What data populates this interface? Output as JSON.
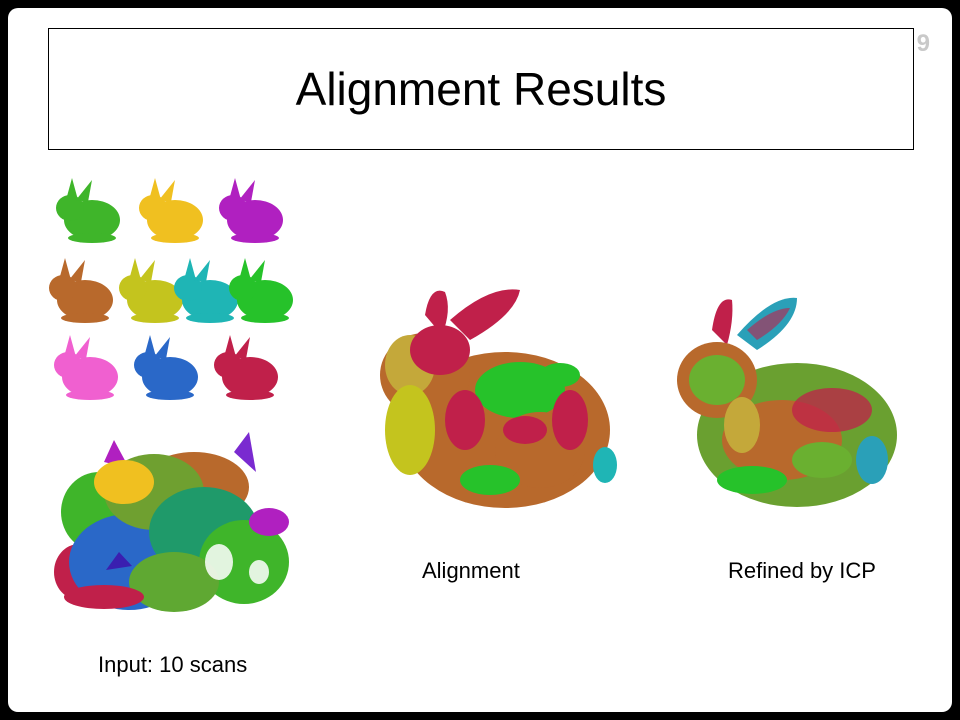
{
  "slide": {
    "page_number": "9",
    "title": "Alignment Results"
  },
  "captions": {
    "input": "Input: 10 scans",
    "alignment": "Alignment",
    "refined": "Refined by ICP"
  },
  "scans": [
    {
      "color": "#3fb52a",
      "icon": "bunny-scan-icon"
    },
    {
      "color": "#f0c020",
      "icon": "bunny-scan-icon"
    },
    {
      "color": "#b020c0",
      "icon": "bunny-scan-icon"
    },
    {
      "color": "#b8692c",
      "icon": "bunny-scan-icon"
    },
    {
      "color": "#c4c41e",
      "icon": "bunny-scan-icon"
    },
    {
      "color": "#1fb5b5",
      "icon": "bunny-scan-icon"
    },
    {
      "color": "#26c22a",
      "icon": "bunny-scan-icon"
    },
    {
      "color": "#f060d0",
      "icon": "bunny-scan-icon"
    },
    {
      "color": "#2a68c8",
      "icon": "bunny-scan-icon"
    },
    {
      "color": "#c0204a",
      "icon": "bunny-scan-icon"
    }
  ],
  "colors": {
    "background": "#000000",
    "slide": "#ffffff",
    "page_number": "#c9c9c9"
  }
}
